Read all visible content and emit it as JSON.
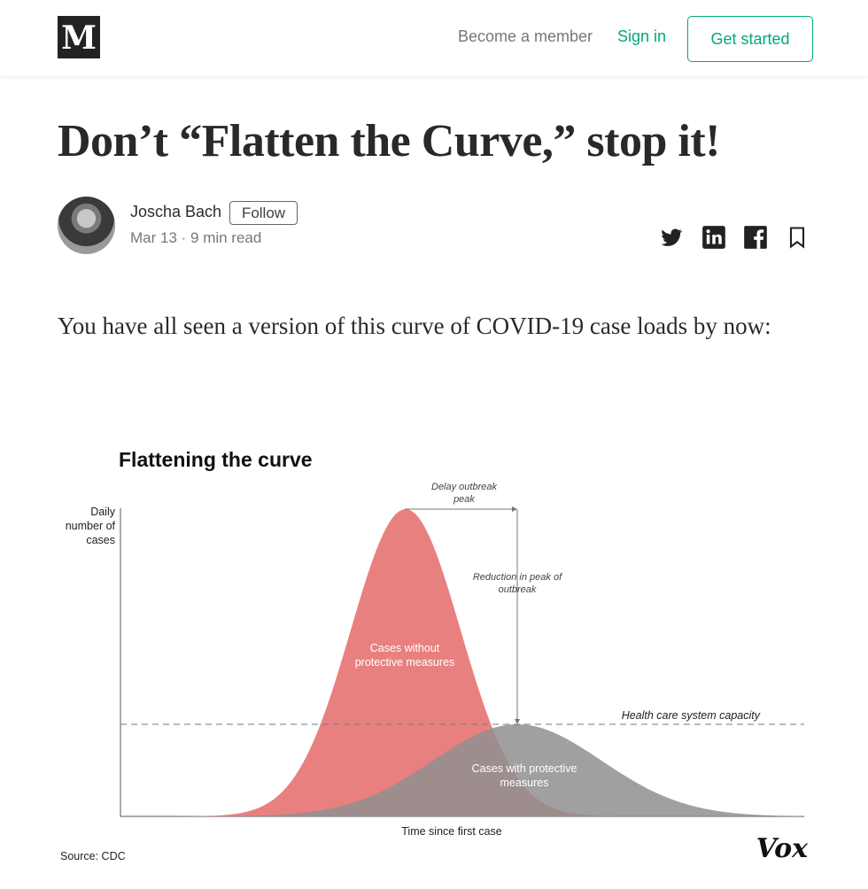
{
  "topbar": {
    "logo_text": "M",
    "become_member": "Become a member",
    "sign_in": "Sign in",
    "get_started": "Get started"
  },
  "article": {
    "title": "Don’t “Flatten the Curve,” stop it!",
    "author": "Joscha Bach",
    "follow_label": "Follow",
    "meta": "Mar 13 · 9 min read",
    "intro": "You have all seen a version of this curve of COVID-19 case loads by now:"
  },
  "share_icons": [
    "twitter-icon",
    "linkedin-icon",
    "facebook-icon",
    "bookmark-icon"
  ],
  "colors": {
    "accent": "#03a87c",
    "curve_without": "#e8807f",
    "curve_with": "#9a9a9a",
    "overlap": "#9b7070"
  },
  "chart_data": {
    "type": "area",
    "title": "Flattening the curve",
    "ylabel": "Daily number of cases",
    "xlabel": "Time since first case",
    "source": "Source: CDC",
    "brand": "Vox",
    "capacity_label": "Health care system capacity",
    "annotations": {
      "delay": "Delay outbreak peak",
      "reduction": "Reduction in peak of outbreak"
    },
    "series": [
      {
        "name": "Cases without protective measures",
        "label": "Cases without protective measures"
      },
      {
        "name": "Cases with protective measures",
        "label": "Cases with protective measures"
      }
    ]
  }
}
